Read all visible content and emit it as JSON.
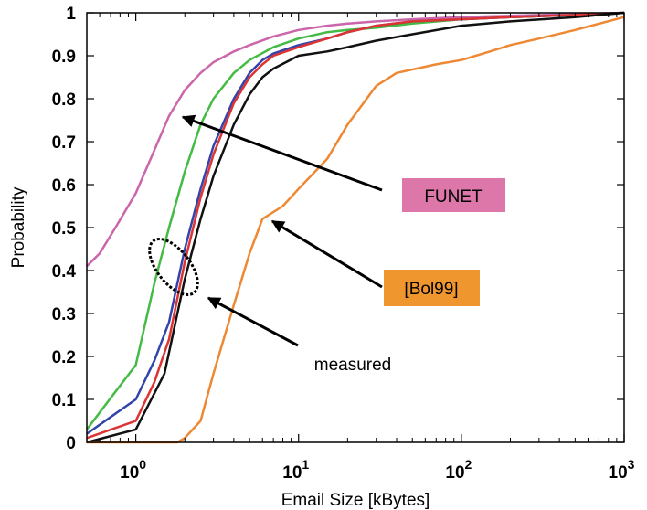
{
  "chart_data": {
    "type": "line",
    "xlabel": "Email Size [kBytes]",
    "ylabel": "Probability",
    "x_scale": "log",
    "xlim": [
      0.5,
      1000
    ],
    "ylim": [
      0,
      1
    ],
    "x_ticks": [
      {
        "value": 1,
        "base": "10",
        "exp": "0"
      },
      {
        "value": 10,
        "base": "10",
        "exp": "1"
      },
      {
        "value": 100,
        "base": "10",
        "exp": "2"
      },
      {
        "value": 1000,
        "base": "10",
        "exp": "3"
      }
    ],
    "y_ticks": [
      {
        "value": 0,
        "label": "0"
      },
      {
        "value": 0.1,
        "label": "0.1"
      },
      {
        "value": 0.2,
        "label": "0.2"
      },
      {
        "value": 0.3,
        "label": "0.3"
      },
      {
        "value": 0.4,
        "label": "0.4"
      },
      {
        "value": 0.5,
        "label": "0.5"
      },
      {
        "value": 0.6,
        "label": "0.6"
      },
      {
        "value": 0.7,
        "label": "0.7"
      },
      {
        "value": 0.8,
        "label": "0.8"
      },
      {
        "value": 0.9,
        "label": "0.9"
      },
      {
        "value": 1,
        "label": "1"
      }
    ],
    "grid": false,
    "series": [
      {
        "key": "funet",
        "color": "#cc66aa",
        "x": [
          0.5,
          0.6,
          0.75,
          1,
          1.3,
          1.6,
          2,
          2.5,
          3,
          4,
          5,
          7,
          10,
          15,
          20,
          30,
          50,
          100,
          200,
          500,
          1000
        ],
        "y": [
          0.41,
          0.44,
          0.5,
          0.58,
          0.68,
          0.76,
          0.82,
          0.86,
          0.885,
          0.91,
          0.925,
          0.945,
          0.96,
          0.97,
          0.975,
          0.98,
          0.985,
          0.99,
          0.993,
          0.997,
          1.0
        ]
      },
      {
        "key": "green",
        "color": "#44bb44",
        "x": [
          0.5,
          1,
          1.3,
          1.6,
          2,
          2.5,
          3,
          4,
          5,
          7,
          10,
          15,
          20,
          30,
          50,
          100,
          200,
          500,
          1000
        ],
        "y": [
          0.03,
          0.18,
          0.37,
          0.5,
          0.63,
          0.74,
          0.8,
          0.86,
          0.89,
          0.92,
          0.94,
          0.955,
          0.96,
          0.965,
          0.975,
          0.985,
          0.99,
          0.995,
          1.0
        ]
      },
      {
        "key": "blue",
        "color": "#3344aa",
        "x": [
          0.5,
          1,
          1.3,
          1.6,
          2,
          2.5,
          3,
          4,
          5,
          6,
          7,
          10,
          15,
          20,
          30,
          50,
          100,
          200,
          500,
          1000
        ],
        "y": [
          0.02,
          0.1,
          0.19,
          0.28,
          0.45,
          0.59,
          0.69,
          0.8,
          0.86,
          0.89,
          0.905,
          0.925,
          0.94,
          0.955,
          0.97,
          0.98,
          0.985,
          0.99,
          0.995,
          1.0
        ]
      },
      {
        "key": "red",
        "color": "#dd3333",
        "x": [
          0.5,
          1,
          1.3,
          1.6,
          2,
          2.5,
          3,
          4,
          5,
          6,
          7,
          10,
          15,
          20,
          30,
          50,
          100,
          200,
          500,
          1000
        ],
        "y": [
          0.01,
          0.05,
          0.14,
          0.24,
          0.42,
          0.57,
          0.67,
          0.79,
          0.85,
          0.88,
          0.9,
          0.92,
          0.94,
          0.955,
          0.97,
          0.98,
          0.985,
          0.99,
          0.995,
          1.0
        ]
      },
      {
        "key": "black",
        "color": "#111111",
        "x": [
          0.5,
          1,
          1.5,
          2,
          2.5,
          3,
          4,
          5,
          6,
          7,
          10,
          15,
          20,
          30,
          50,
          100,
          200,
          500,
          1000
        ],
        "y": [
          0.0,
          0.03,
          0.16,
          0.38,
          0.52,
          0.62,
          0.74,
          0.81,
          0.85,
          0.87,
          0.9,
          0.91,
          0.92,
          0.935,
          0.95,
          0.97,
          0.98,
          0.99,
          1.0
        ]
      },
      {
        "key": "bol99",
        "color": "#ee8833",
        "x": [
          0.5,
          1.8,
          2,
          2.5,
          3,
          4,
          5,
          6,
          8,
          10,
          15,
          20,
          30,
          40,
          70,
          100,
          150,
          200,
          300,
          500,
          1000
        ],
        "y": [
          0.0,
          0.0,
          0.01,
          0.05,
          0.16,
          0.32,
          0.44,
          0.52,
          0.55,
          0.59,
          0.66,
          0.74,
          0.83,
          0.86,
          0.88,
          0.89,
          0.91,
          0.925,
          0.94,
          0.96,
          0.99
        ]
      }
    ],
    "annotations": {
      "funet": {
        "label": "FUNET",
        "bg": "#dd77aa"
      },
      "bol99": {
        "label": "[Bol99]",
        "bg": "#f0962f"
      },
      "measured": {
        "label": "measured"
      }
    }
  }
}
